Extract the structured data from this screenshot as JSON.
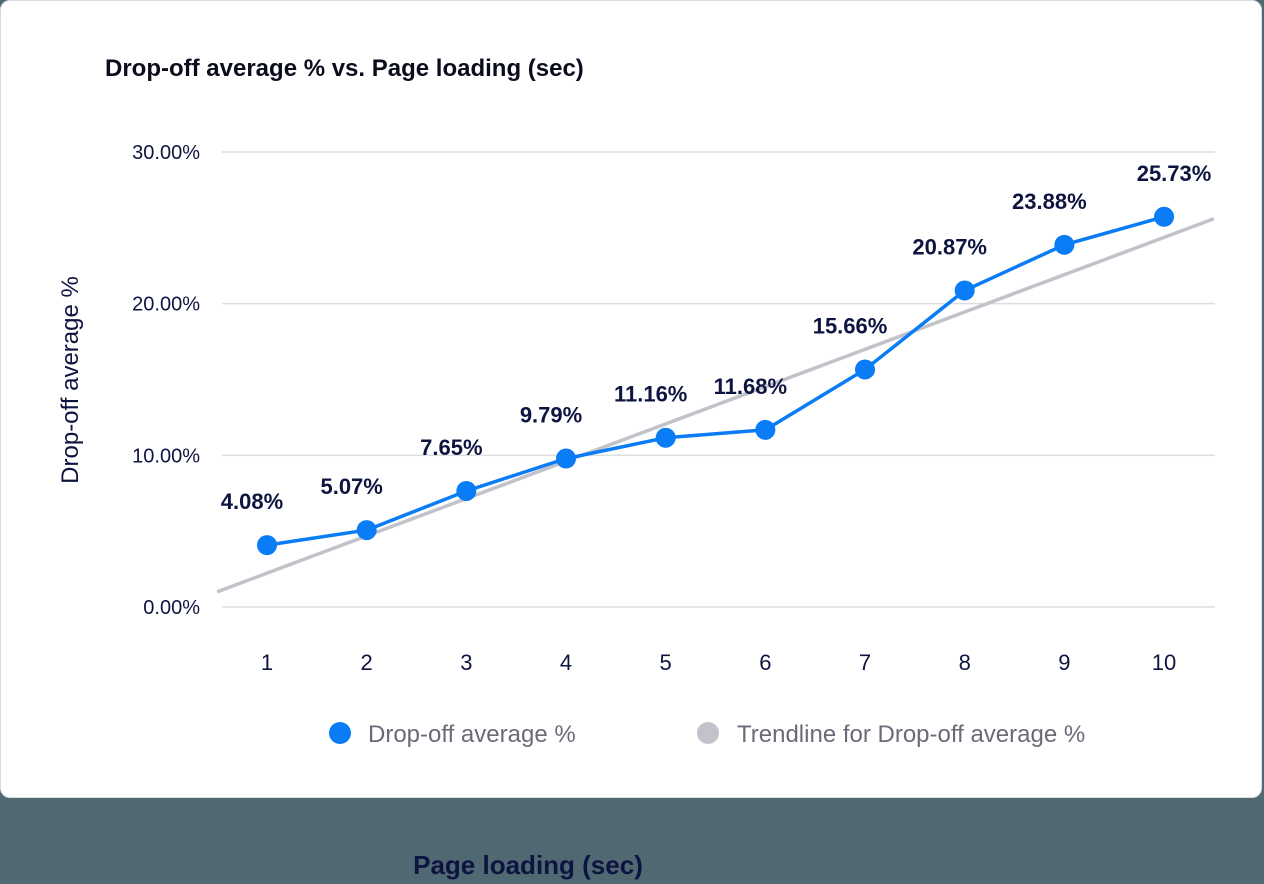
{
  "chart_data": {
    "type": "line",
    "title": "Drop-off average % vs. Page loading (sec)",
    "xlabel": "Page loading (sec)",
    "ylabel": "Drop-off average %",
    "categories": [
      "1",
      "2",
      "3",
      "4",
      "5",
      "6",
      "7",
      "8",
      "9",
      "10"
    ],
    "series": [
      {
        "name": "Drop-off average %",
        "values": [
          4.08,
          5.07,
          7.65,
          9.79,
          11.16,
          11.68,
          15.66,
          20.87,
          23.88,
          25.73
        ],
        "labels": [
          "4.08%",
          "5.07%",
          "7.65%",
          "9.79%",
          "11.16%",
          "11.68%",
          "15.66%",
          "20.87%",
          "23.88%",
          "25.73%"
        ],
        "color": "#0a7cf5"
      },
      {
        "name": "Trendline for Drop-off average %",
        "values": [
          1.0,
          25.6
        ],
        "x_range": [
          0.5,
          10.5
        ],
        "color": "#c2c2cb"
      }
    ],
    "yticks": [
      "0.00%",
      "10.00%",
      "20.00%",
      "30.00%"
    ],
    "ylim": [
      0,
      30
    ],
    "grid": true,
    "legend_position": "bottom-right"
  },
  "colors": {
    "series": "#0a7cf5",
    "trend": "#c2c2cb",
    "text": "#0e1440",
    "background": "#4f6872"
  }
}
